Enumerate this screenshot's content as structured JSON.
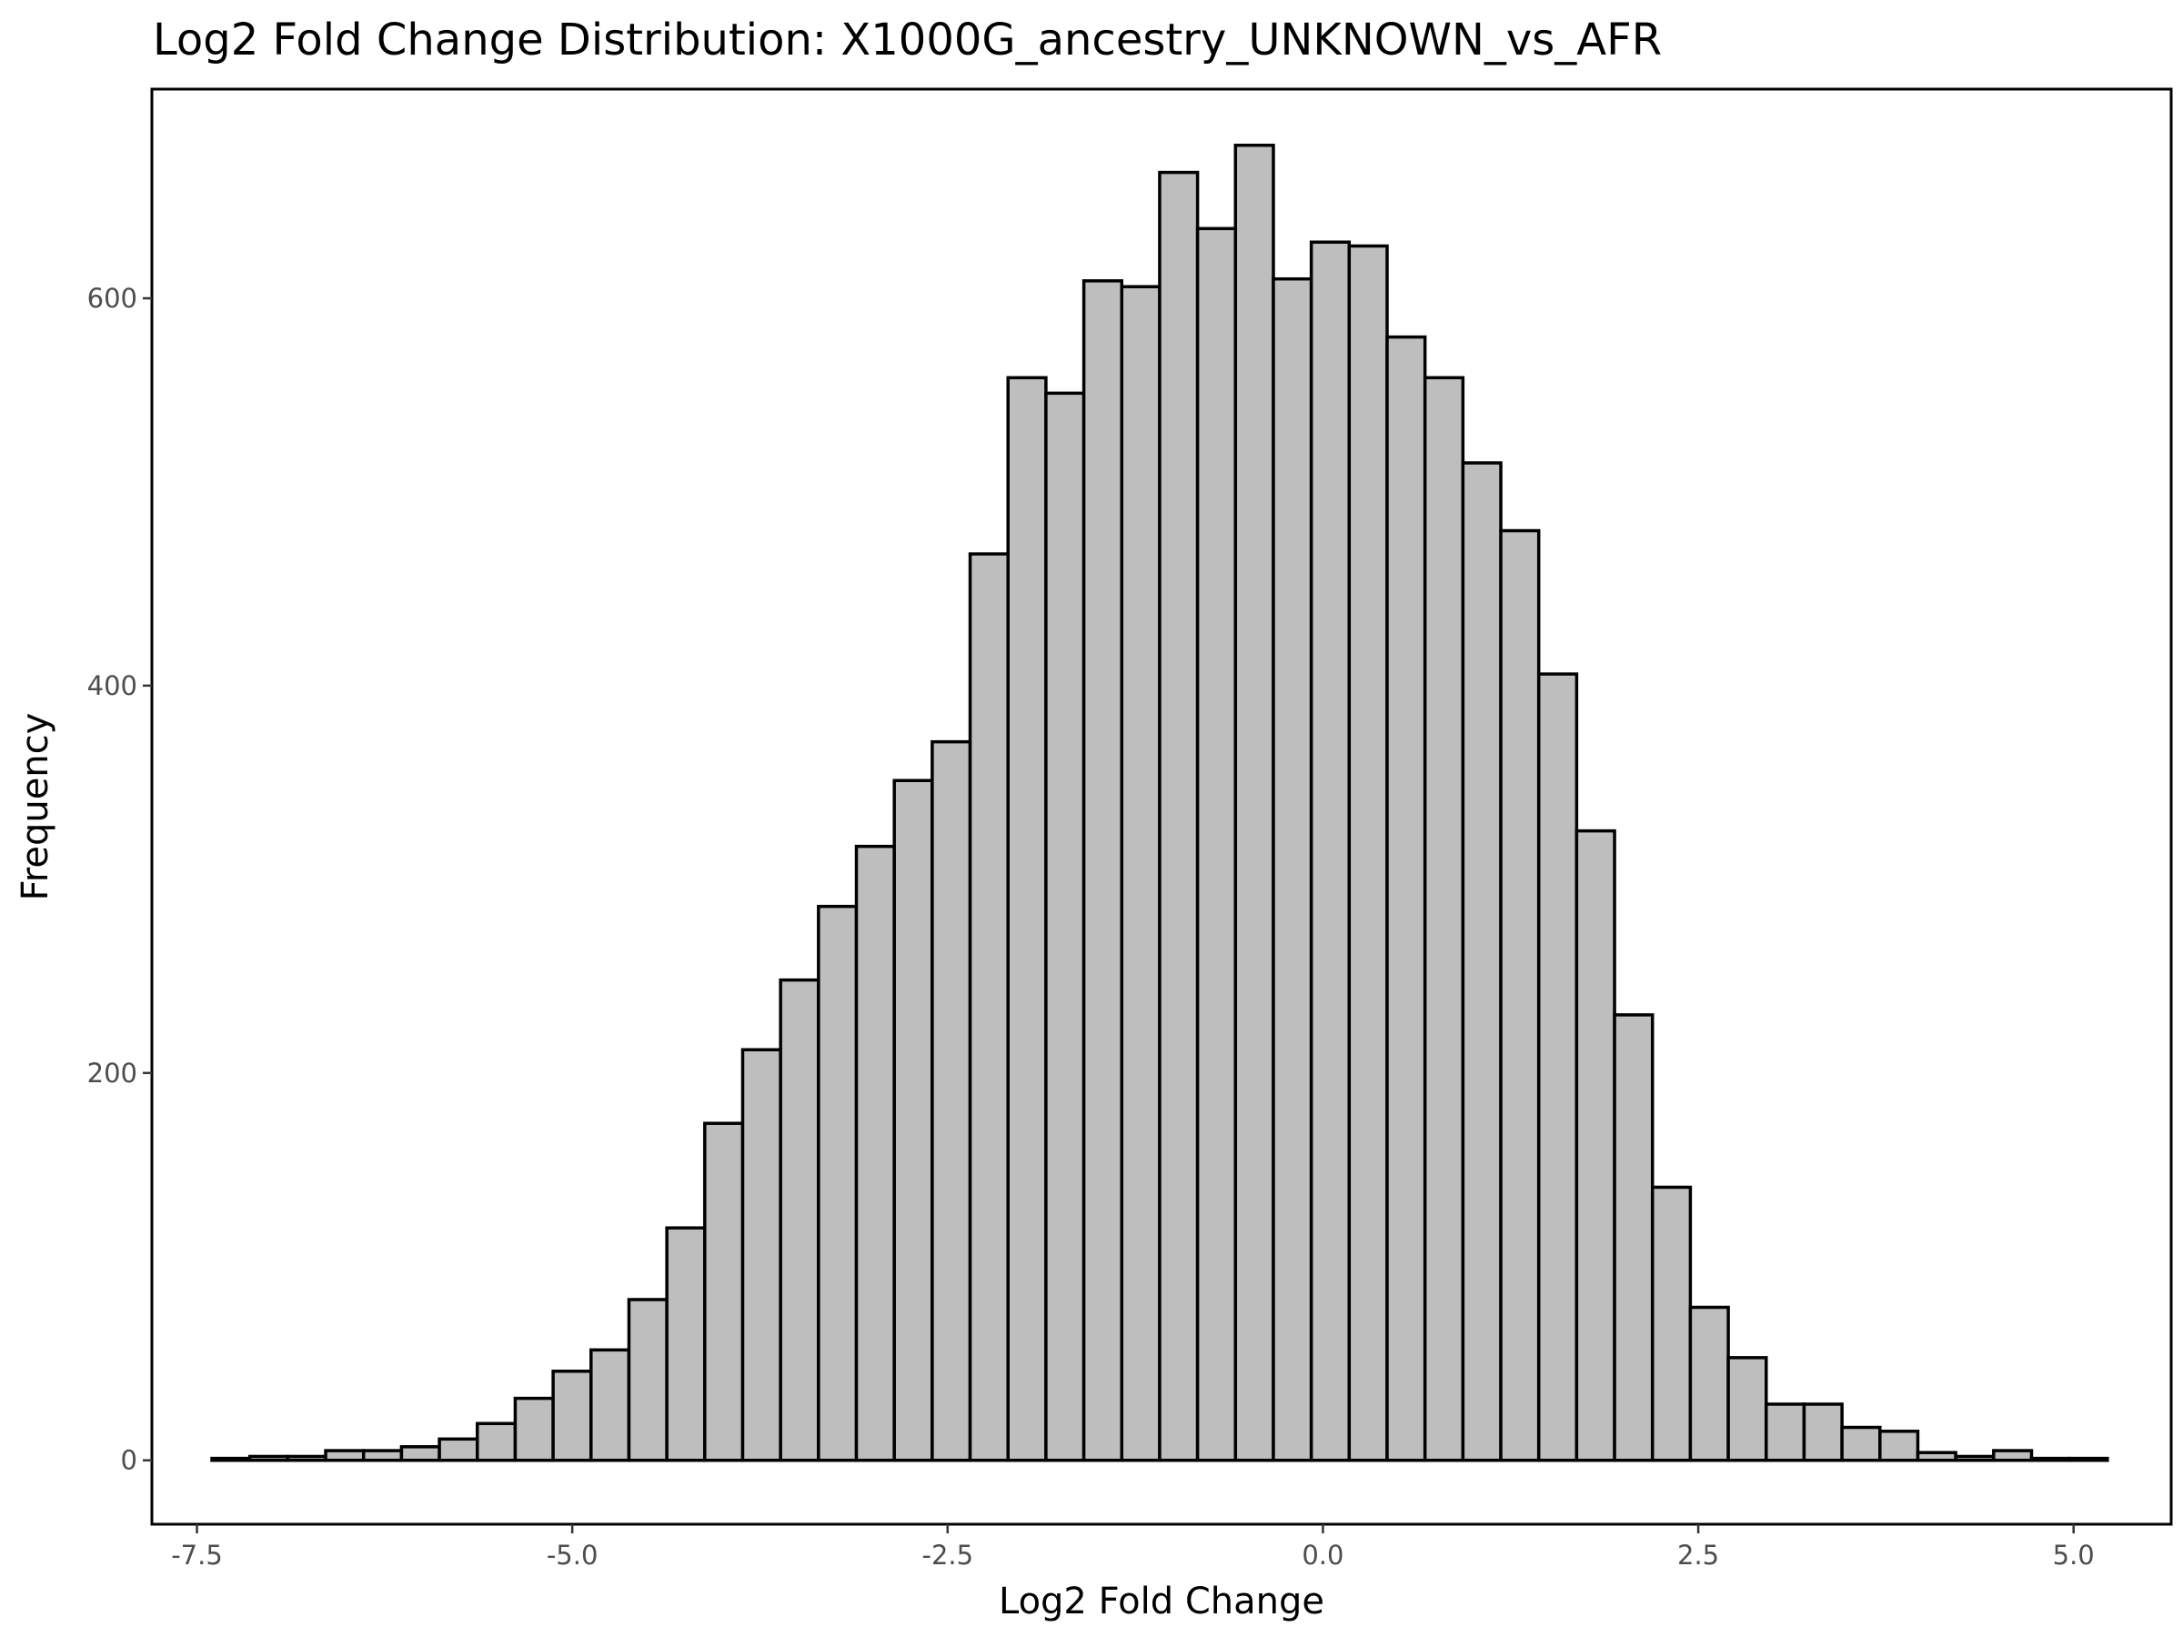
{
  "chart_data": {
    "type": "bar",
    "title": "Log2 Fold Change Distribution: X1000G_ancestry_UNKNOWN_vs_AFR",
    "xlabel": "Log2 Fold Change",
    "ylabel": "Frequency",
    "xlim": [
      -7.8,
      5.65
    ],
    "ylim": [
      -33,
      708
    ],
    "grid": false,
    "legend": "none",
    "colors": {
      "bar_fill": "#bebebe",
      "bar_outline": "#000000",
      "tick_text": "#4d4d4d"
    },
    "x_ticks": [
      -7.5,
      -5.0,
      -2.5,
      0.0,
      2.5,
      5.0
    ],
    "x_tick_labels": [
      "-7.5",
      "-5.0",
      "-2.5",
      "0.0",
      "2.5",
      "5.0"
    ],
    "y_ticks": [
      0,
      200,
      400,
      600
    ],
    "y_tick_labels": [
      "0",
      "200",
      "400",
      "600"
    ],
    "bin_width": 0.2525,
    "bin_start": -7.4,
    "values": [
      1,
      2,
      2,
      5,
      5,
      7,
      11,
      19,
      32,
      46,
      57,
      83,
      120,
      174,
      212,
      248,
      286,
      317,
      351,
      371,
      468,
      559,
      551,
      609,
      606,
      665,
      636,
      679,
      610,
      629,
      627,
      580,
      559,
      515,
      480,
      406,
      325,
      230,
      141,
      79,
      53,
      29,
      29,
      17,
      15,
      4,
      2,
      5,
      1,
      1
    ]
  }
}
